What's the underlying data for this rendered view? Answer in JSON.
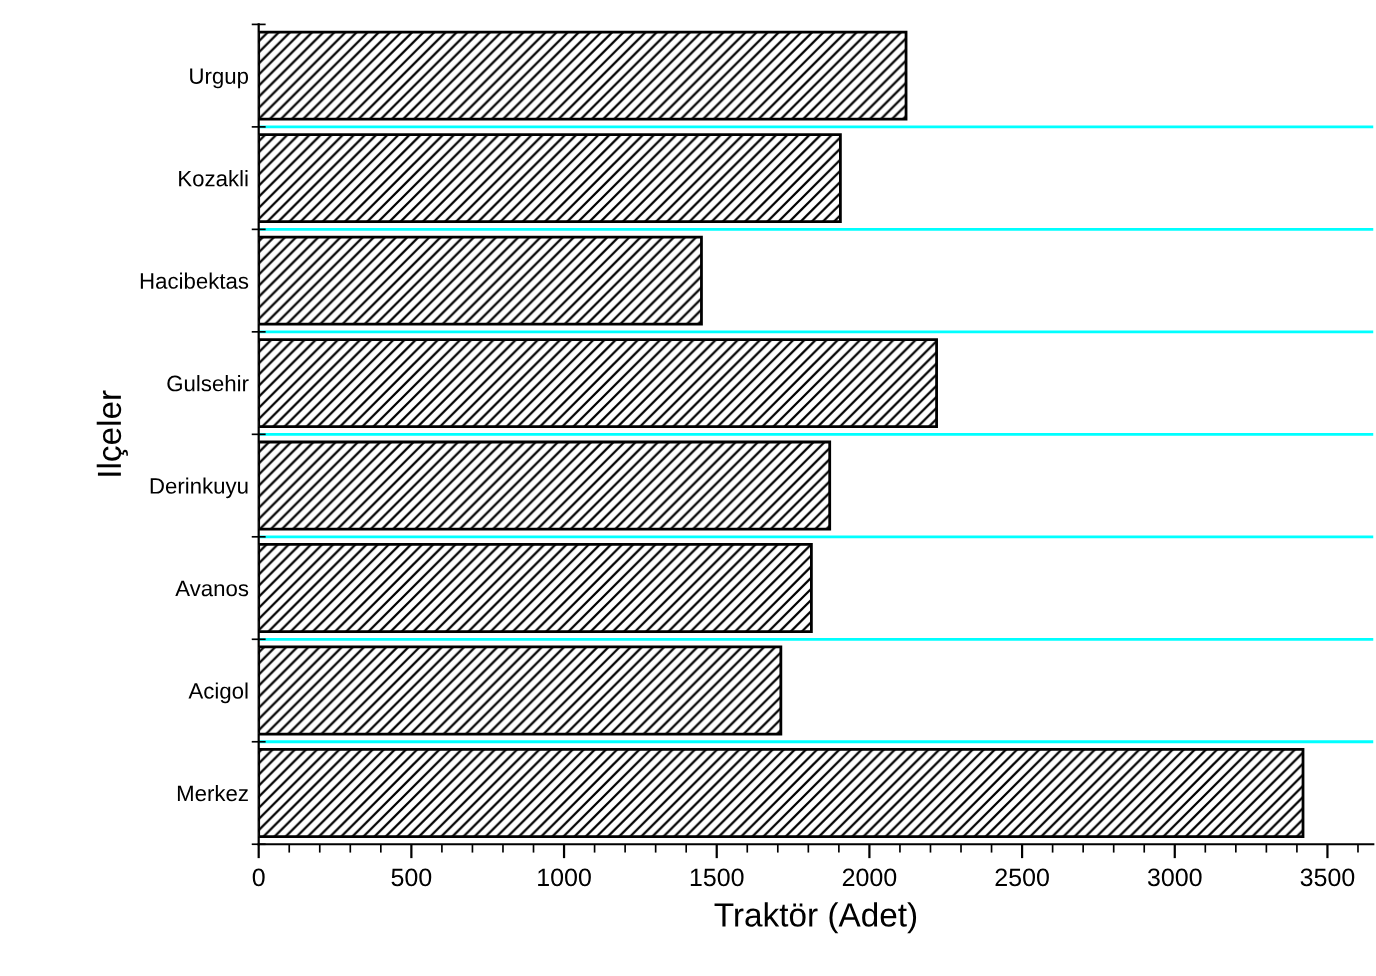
{
  "chart_data": {
    "type": "bar",
    "orientation": "horizontal",
    "categories": [
      "Urgup",
      "Kozakli",
      "Hacibektas",
      "Gulsehir",
      "Derinkuyu",
      "Avanos",
      "Acigol",
      "Merkez"
    ],
    "values": [
      2120,
      1905,
      1450,
      2220,
      1870,
      1810,
      1710,
      3420
    ],
    "color": "#000000",
    "xlabel": "Traktör (Adet)",
    "ylabel": "Ilçeler",
    "xlim": [
      0,
      3650
    ],
    "xticks": [
      0,
      500,
      1000,
      1500,
      2000,
      2500,
      3000,
      3500
    ],
    "grid": "y"
  }
}
